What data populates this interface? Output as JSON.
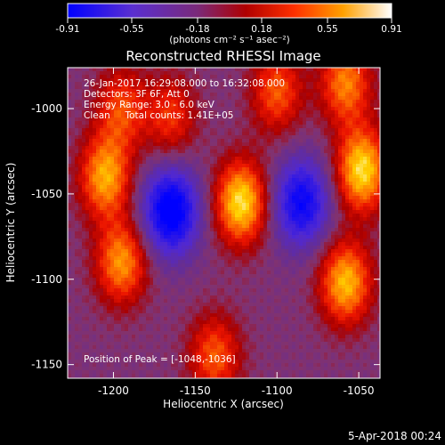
{
  "colorbar": {
    "ticks": [
      "-0.91",
      "-0.55",
      "-0.18",
      "0.18",
      "0.55",
      "0.91"
    ],
    "tick_values": [
      -0.91,
      -0.55,
      -0.18,
      0.18,
      0.55,
      0.91
    ],
    "range": [
      -0.91,
      0.91
    ],
    "unit_label": "(photons cm⁻² s⁻¹ asec⁻²)"
  },
  "chart_data": {
    "type": "heatmap",
    "title": "Reconstructed RHESSI Image",
    "xlabel": "Heliocentric X (arcsec)",
    "ylabel": "Heliocentric Y (arcsec)",
    "xlim": [
      -1228,
      -1037
    ],
    "ylim": [
      -1158,
      -976
    ],
    "x_ticks": [
      "-1200",
      "-1150",
      "-1100",
      "-1050"
    ],
    "x_tick_values": [
      -1200,
      -1150,
      -1100,
      -1050
    ],
    "y_ticks": [
      "-1000",
      "-1050",
      "-1100",
      "-1150"
    ],
    "y_tick_values": [
      -1000,
      -1050,
      -1100,
      -1150
    ],
    "colormap": [
      "#0000ff",
      "#6a2fb5",
      "#8a3a8a",
      "#c00000",
      "#ff2000",
      "#ff8000",
      "#ffd000",
      "#ffffff"
    ],
    "annotations": [
      "26-Jan-2017 16:29:08.000 to 16:32:08.000",
      "Detectors: 3F 6F, Att 0",
      "Energy Range: 3.0 - 6.0 keV",
      "Clean     Total counts: 1.41E+05"
    ],
    "peak_label": "Position of Peak = [-1048,-1036]",
    "peak_position": [
      -1048,
      -1036
    ],
    "sources": [
      {
        "x": -1122,
        "y": -1055,
        "intensity": 0.91
      },
      {
        "x": -1205,
        "y": -1040,
        "intensity": 0.75
      },
      {
        "x": -1195,
        "y": -1090,
        "intensity": 0.7
      },
      {
        "x": -1048,
        "y": -1036,
        "intensity": 0.9
      },
      {
        "x": -1058,
        "y": -1102,
        "intensity": 0.8
      },
      {
        "x": -1100,
        "y": -990,
        "intensity": 0.55
      },
      {
        "x": -1058,
        "y": -985,
        "intensity": 0.65
      },
      {
        "x": -1165,
        "y": -1005,
        "intensity": 0.45
      },
      {
        "x": -1138,
        "y": -1145,
        "intensity": 0.55
      },
      {
        "x": -1195,
        "y": -1000,
        "intensity": 0.5
      }
    ],
    "minima": [
      {
        "x": -1165,
        "y": -1060,
        "intensity": -0.91
      },
      {
        "x": -1085,
        "y": -1055,
        "intensity": -0.75
      }
    ]
  },
  "footer": {
    "date": "5-Apr-2018 00:24"
  }
}
